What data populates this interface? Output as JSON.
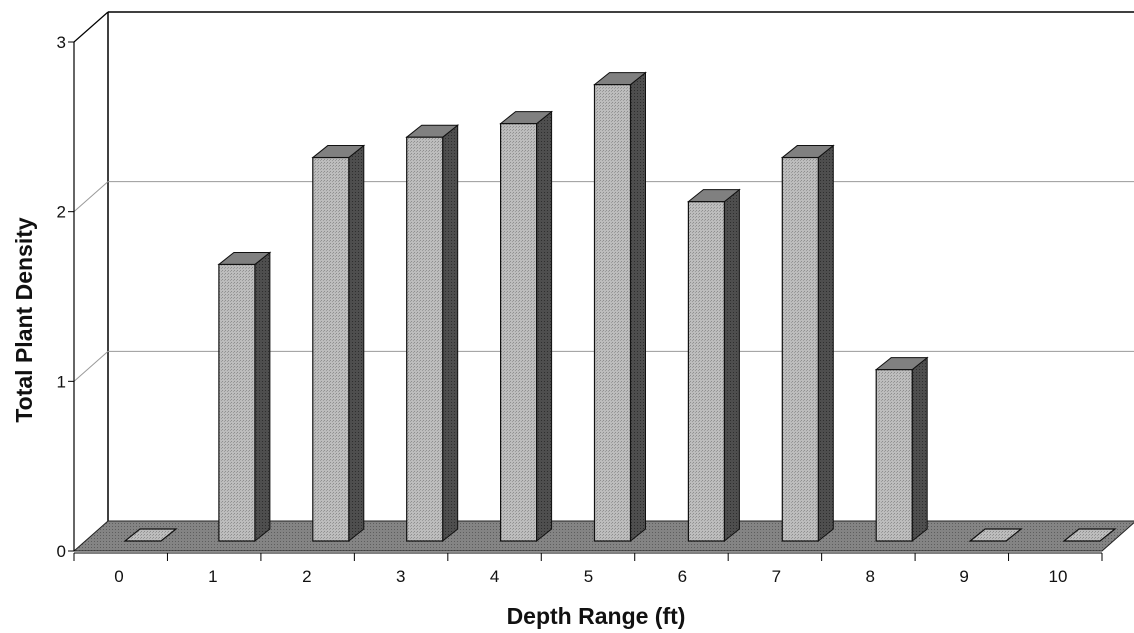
{
  "chart_data": {
    "type": "bar",
    "title": "",
    "xlabel": "Depth Range (ft)",
    "ylabel": "Total Plant Density",
    "categories": [
      "0",
      "1",
      "2",
      "3",
      "4",
      "5",
      "6",
      "7",
      "8",
      "9",
      "10"
    ],
    "values": [
      0,
      1.63,
      2.26,
      2.38,
      2.46,
      2.69,
      2.0,
      2.26,
      1.01,
      0,
      0
    ],
    "ylim": [
      0,
      3
    ],
    "yticks": [
      "0",
      "1",
      "2",
      "3"
    ],
    "grid": true,
    "legend": "none",
    "style": "3d-column",
    "colors": {
      "bar_front": "#b4b4b4",
      "bar_side": "#4a4a4a",
      "bar_top": "#808080",
      "floor": "#7a7a7a",
      "gridline": "#9a9a9a"
    }
  }
}
